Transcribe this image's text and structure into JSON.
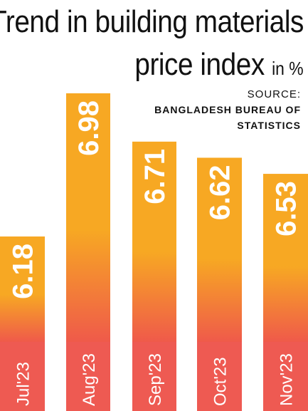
{
  "title": {
    "line1": "Trend in building materials",
    "line2": "price index",
    "unit": "in %"
  },
  "source": {
    "label": "SOURCE:",
    "org_line1": "BANGLADESH BUREAU OF",
    "org_line2": "STATISTICS"
  },
  "colors": {
    "bar_top": "#F7A823",
    "bar_bottom": "#EF5A4A",
    "label_band": "#EE5A52",
    "text": "#111111"
  },
  "chart_data": {
    "type": "bar",
    "categories": [
      "Jul'23",
      "Aug'23",
      "Sep'23",
      "Oct'23",
      "Nov'23"
    ],
    "values": [
      6.18,
      6.98,
      6.71,
      6.62,
      6.53
    ],
    "value_labels": [
      "6.18",
      "6.98",
      "6.71",
      "6.62",
      "6.53"
    ],
    "title": "Trend in building materials price index in %",
    "xlabel": "",
    "ylabel": "",
    "grid": false,
    "legend": "none"
  }
}
